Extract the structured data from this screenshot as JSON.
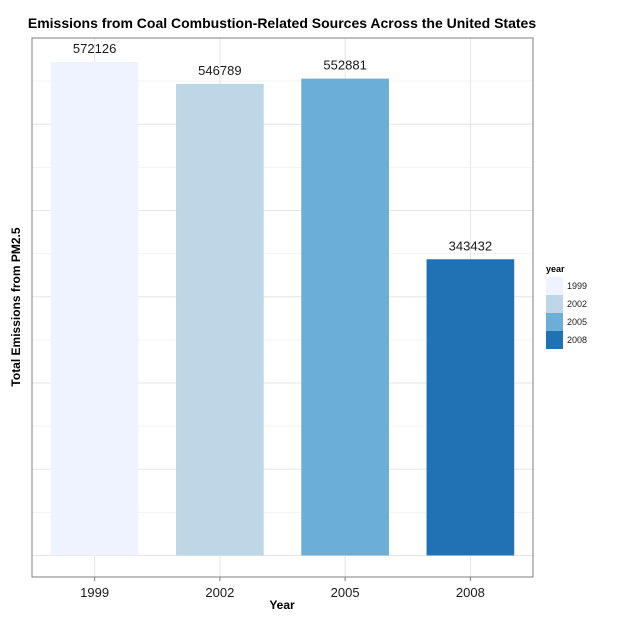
{
  "chart_data": {
    "type": "bar",
    "title": "Emissions from Coal Combustion-Related Sources Across the United States",
    "xlabel": "Year",
    "ylabel": "Total Emissions from PM2.5",
    "categories": [
      "1999",
      "2002",
      "2005",
      "2008"
    ],
    "values": [
      572126,
      546789,
      552881,
      343432
    ],
    "data_labels": [
      "572126",
      "546789",
      "552881",
      "343432"
    ],
    "colors": [
      "#eff3ff",
      "#bdd7e7",
      "#6baed6",
      "#2171b5"
    ],
    "ylim": [
      -25000,
      600000
    ],
    "y_tick_labels_shown": false,
    "grid": true,
    "legend": {
      "title": "year",
      "position": "right",
      "entries": [
        "1999",
        "2002",
        "2005",
        "2008"
      ]
    }
  }
}
